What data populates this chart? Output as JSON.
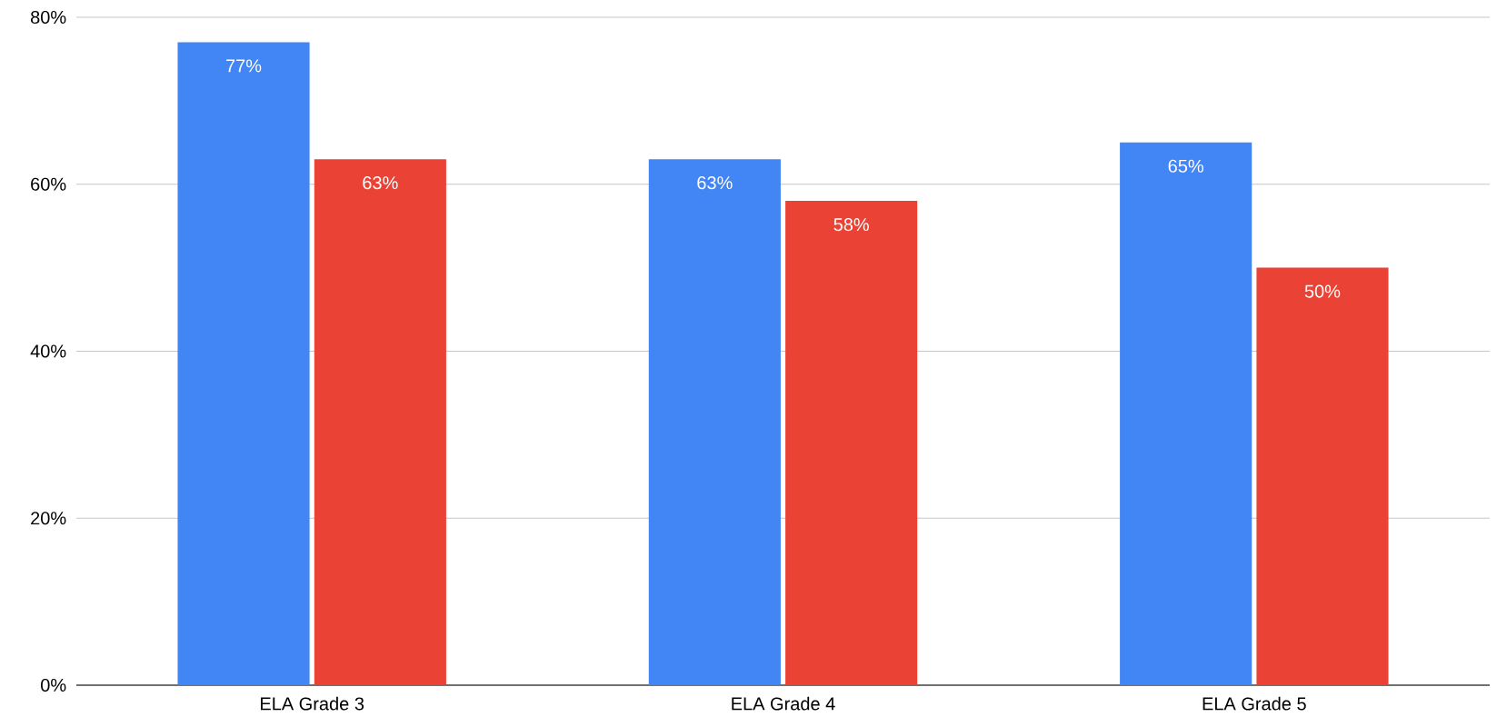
{
  "chart_data": {
    "type": "bar",
    "categories": [
      "ELA Grade 3",
      "ELA Grade 4",
      "ELA Grade 5"
    ],
    "series": [
      {
        "color": "#4285f4",
        "values": [
          77,
          63,
          65
        ],
        "value_labels": [
          "77%",
          "63%",
          "65%"
        ]
      },
      {
        "color": "#ea4335",
        "values": [
          63,
          58,
          50
        ],
        "value_labels": [
          "63%",
          "58%",
          "50%"
        ]
      }
    ],
    "ylim": [
      0,
      80
    ],
    "yticks": [
      {
        "value": 0,
        "label": "0%"
      },
      {
        "value": 20,
        "label": "20%"
      },
      {
        "value": 40,
        "label": "40%"
      },
      {
        "value": 60,
        "label": "60%"
      },
      {
        "value": 80,
        "label": "80%"
      }
    ],
    "grid": "y"
  }
}
